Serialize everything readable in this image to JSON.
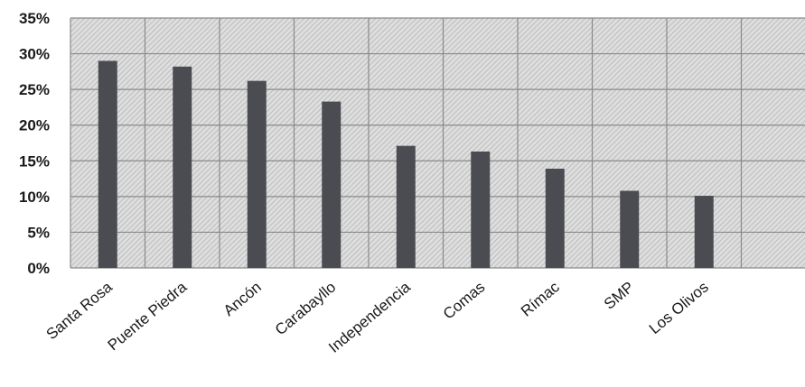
{
  "chart_data": {
    "type": "bar",
    "title": "",
    "xlabel": "",
    "ylabel": "",
    "categories": [
      "Santa Rosa",
      "Puente Piedra",
      "Ancón",
      "Carabayllo",
      "Independencia",
      "Comas",
      "Rímac",
      "SMP",
      "Los Olivos"
    ],
    "values": [
      29,
      28.2,
      26.2,
      23.3,
      17.1,
      16.3,
      13.9,
      10.8,
      10.1
    ],
    "ylim": [
      0,
      35
    ],
    "yticks": [
      "0%",
      "5%",
      "10%",
      "15%",
      "20%",
      "25%",
      "30%",
      "35%"
    ],
    "grid": true,
    "legend": "none",
    "colors": {
      "bar": "#4a4c52",
      "plot_bg": "#d2d2d2",
      "grid": "#8a8a8a"
    }
  }
}
